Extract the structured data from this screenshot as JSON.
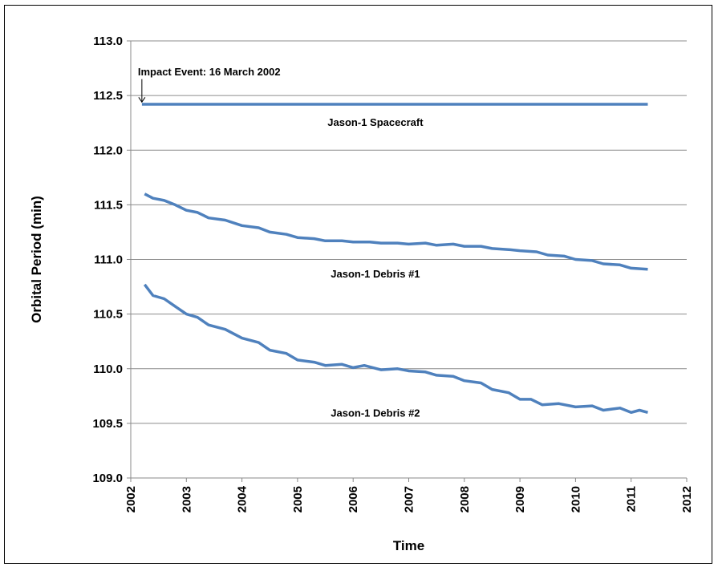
{
  "chart_data": {
    "type": "line",
    "title": "",
    "xlabel": "Time",
    "ylabel": "Orbital Period  (min)",
    "xlim": [
      2002,
      2012
    ],
    "ylim": [
      109.0,
      113.0
    ],
    "x_ticks": [
      "2002",
      "2003",
      "2004",
      "2005",
      "2006",
      "2007",
      "2008",
      "2009",
      "2010",
      "2011",
      "2012"
    ],
    "y_ticks": [
      "109.0",
      "109.5",
      "110.0",
      "110.5",
      "111.0",
      "111.5",
      "112.0",
      "112.5",
      "113.0"
    ],
    "grid": "horizontal",
    "line_color": "#4f81bd",
    "annotation": {
      "text": "Impact Event:  16 March 2002",
      "x": 2002.2
    },
    "series": [
      {
        "name": "Jason-1 Spacecraft",
        "label_at": [
          2006.4,
          112.26
        ],
        "points": [
          [
            2002.2,
            112.42
          ],
          [
            2011.3,
            112.42
          ]
        ]
      },
      {
        "name": "Jason-1 Debris #1",
        "label_at": [
          2006.4,
          110.87
        ],
        "points": [
          [
            2002.25,
            111.6
          ],
          [
            2002.4,
            111.56
          ],
          [
            2002.6,
            111.54
          ],
          [
            2002.8,
            111.5
          ],
          [
            2003.0,
            111.45
          ],
          [
            2003.2,
            111.43
          ],
          [
            2003.4,
            111.38
          ],
          [
            2003.7,
            111.36
          ],
          [
            2004.0,
            111.31
          ],
          [
            2004.3,
            111.29
          ],
          [
            2004.5,
            111.25
          ],
          [
            2004.8,
            111.23
          ],
          [
            2005.0,
            111.2
          ],
          [
            2005.3,
            111.19
          ],
          [
            2005.5,
            111.17
          ],
          [
            2005.8,
            111.17
          ],
          [
            2006.0,
            111.16
          ],
          [
            2006.3,
            111.16
          ],
          [
            2006.5,
            111.15
          ],
          [
            2006.8,
            111.15
          ],
          [
            2007.0,
            111.14
          ],
          [
            2007.3,
            111.15
          ],
          [
            2007.5,
            111.13
          ],
          [
            2007.8,
            111.14
          ],
          [
            2008.0,
            111.12
          ],
          [
            2008.3,
            111.12
          ],
          [
            2008.5,
            111.1
          ],
          [
            2008.8,
            111.09
          ],
          [
            2009.0,
            111.08
          ],
          [
            2009.3,
            111.07
          ],
          [
            2009.5,
            111.04
          ],
          [
            2009.8,
            111.03
          ],
          [
            2010.0,
            111.0
          ],
          [
            2010.3,
            110.99
          ],
          [
            2010.5,
            110.96
          ],
          [
            2010.8,
            110.95
          ],
          [
            2011.0,
            110.92
          ],
          [
            2011.3,
            110.91
          ]
        ]
      },
      {
        "name": "Jason-1 Debris #2",
        "label_at": [
          2006.4,
          109.6
        ],
        "points": [
          [
            2002.25,
            110.77
          ],
          [
            2002.4,
            110.67
          ],
          [
            2002.6,
            110.64
          ],
          [
            2002.8,
            110.57
          ],
          [
            2003.0,
            110.5
          ],
          [
            2003.2,
            110.47
          ],
          [
            2003.4,
            110.4
          ],
          [
            2003.7,
            110.36
          ],
          [
            2004.0,
            110.28
          ],
          [
            2004.3,
            110.24
          ],
          [
            2004.5,
            110.17
          ],
          [
            2004.8,
            110.14
          ],
          [
            2005.0,
            110.08
          ],
          [
            2005.3,
            110.06
          ],
          [
            2005.5,
            110.03
          ],
          [
            2005.8,
            110.04
          ],
          [
            2006.0,
            110.01
          ],
          [
            2006.2,
            110.03
          ],
          [
            2006.5,
            109.99
          ],
          [
            2006.8,
            110.0
          ],
          [
            2007.0,
            109.98
          ],
          [
            2007.3,
            109.97
          ],
          [
            2007.5,
            109.94
          ],
          [
            2007.8,
            109.93
          ],
          [
            2008.0,
            109.89
          ],
          [
            2008.3,
            109.87
          ],
          [
            2008.5,
            109.81
          ],
          [
            2008.8,
            109.78
          ],
          [
            2009.0,
            109.72
          ],
          [
            2009.2,
            109.72
          ],
          [
            2009.4,
            109.67
          ],
          [
            2009.7,
            109.68
          ],
          [
            2010.0,
            109.65
          ],
          [
            2010.3,
            109.66
          ],
          [
            2010.5,
            109.62
          ],
          [
            2010.8,
            109.64
          ],
          [
            2011.0,
            109.6
          ],
          [
            2011.15,
            109.62
          ],
          [
            2011.3,
            109.6
          ]
        ]
      }
    ]
  }
}
